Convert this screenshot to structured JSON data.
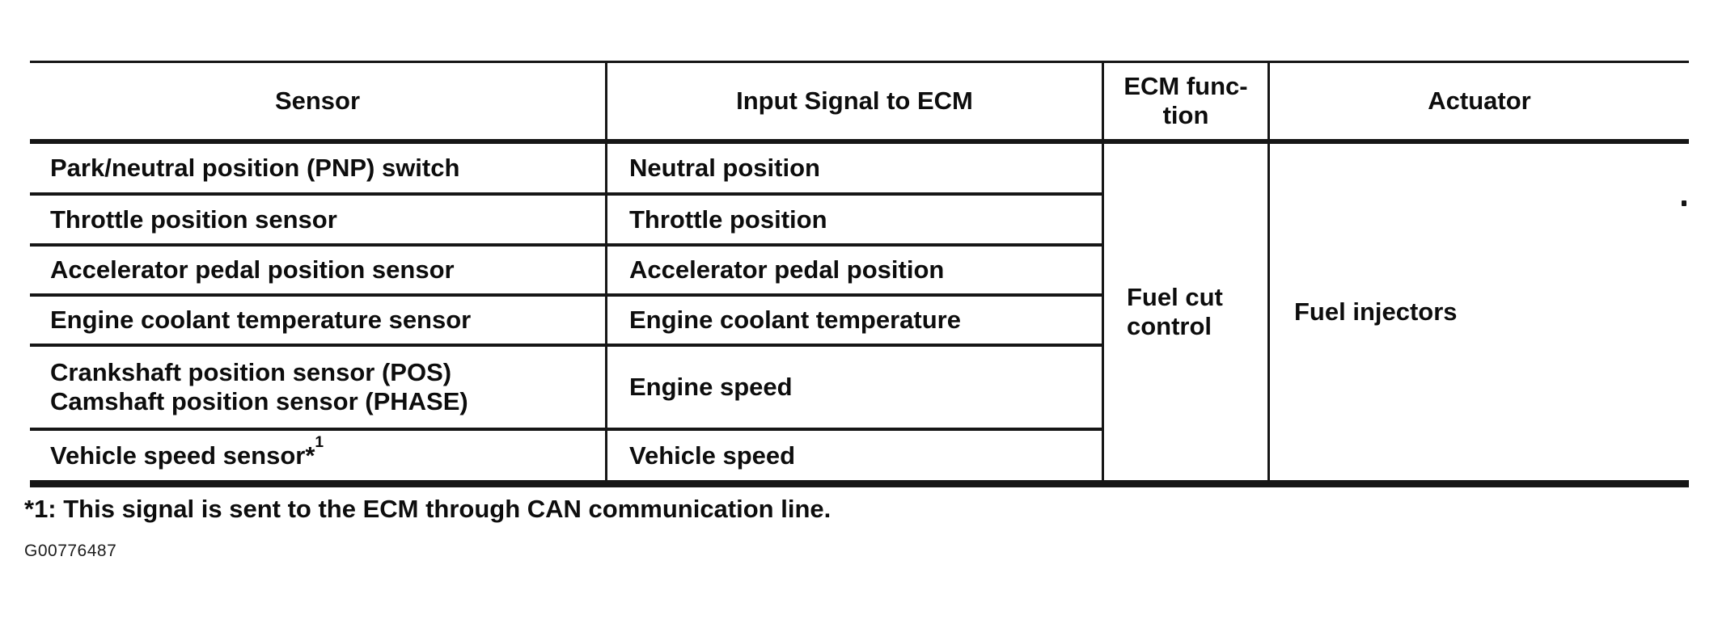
{
  "table": {
    "headers": {
      "sensor": "Sensor",
      "input_signal": "Input Signal to ECM",
      "ecm_function": "ECM func-\ntion",
      "actuator": "Actuator"
    },
    "rows": [
      {
        "sensor": "Park/neutral position (PNP) switch",
        "signal": "Neutral position"
      },
      {
        "sensor": "Throttle position sensor",
        "signal": "Throttle position"
      },
      {
        "sensor": "Accelerator pedal position sensor",
        "signal": "Accelerator pedal position"
      },
      {
        "sensor": "Engine coolant temperature sensor",
        "signal": "Engine coolant temperature"
      },
      {
        "sensor": "Crankshaft position sensor (POS)\nCamshaft position sensor (PHASE)",
        "signal": "Engine speed"
      },
      {
        "sensor": "Vehicle speed sensor*",
        "sensor_sup": "1",
        "signal": "Vehicle speed"
      }
    ],
    "merged_cells": {
      "ecm_function": "Fuel cut control",
      "actuator": "Fuel injectors"
    }
  },
  "footnote": "*1: This signal is sent to the ECM through CAN communication line.",
  "figure_code": "G00776487",
  "colors": {
    "ink": "#0d0d0d",
    "rule": "#161616",
    "background": "#ffffff"
  }
}
